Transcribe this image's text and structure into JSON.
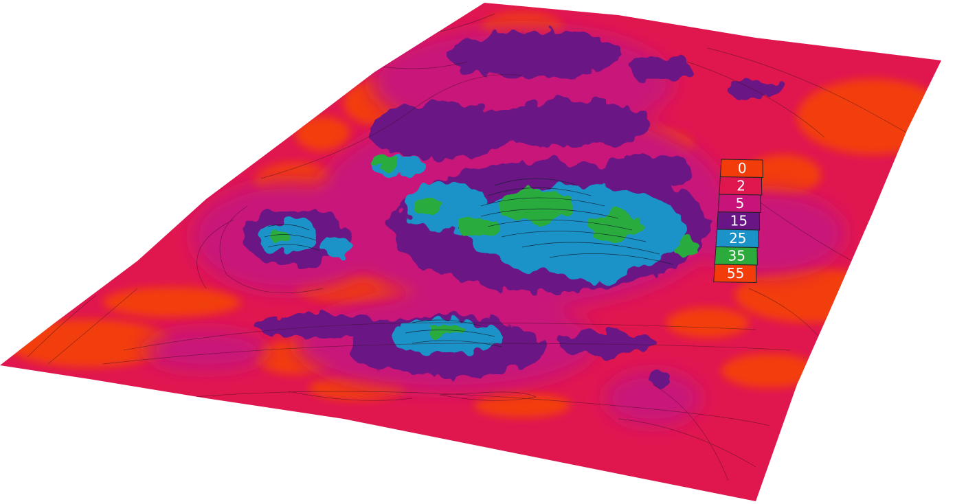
{
  "legend": {
    "entries": [
      {
        "label": "0",
        "color": "#f23c0a"
      },
      {
        "label": "2",
        "color": "#e0174f"
      },
      {
        "label": "5",
        "color": "#c8147a"
      },
      {
        "label": "15",
        "color": "#6a1585"
      },
      {
        "label": "25",
        "color": "#1b93c8"
      },
      {
        "label": "35",
        "color": "#2cab3c"
      },
      {
        "label": "55",
        "color": "#f23c0a"
      }
    ]
  },
  "colors": {
    "background": "#ffffff",
    "contour_line": "#3a1020"
  }
}
